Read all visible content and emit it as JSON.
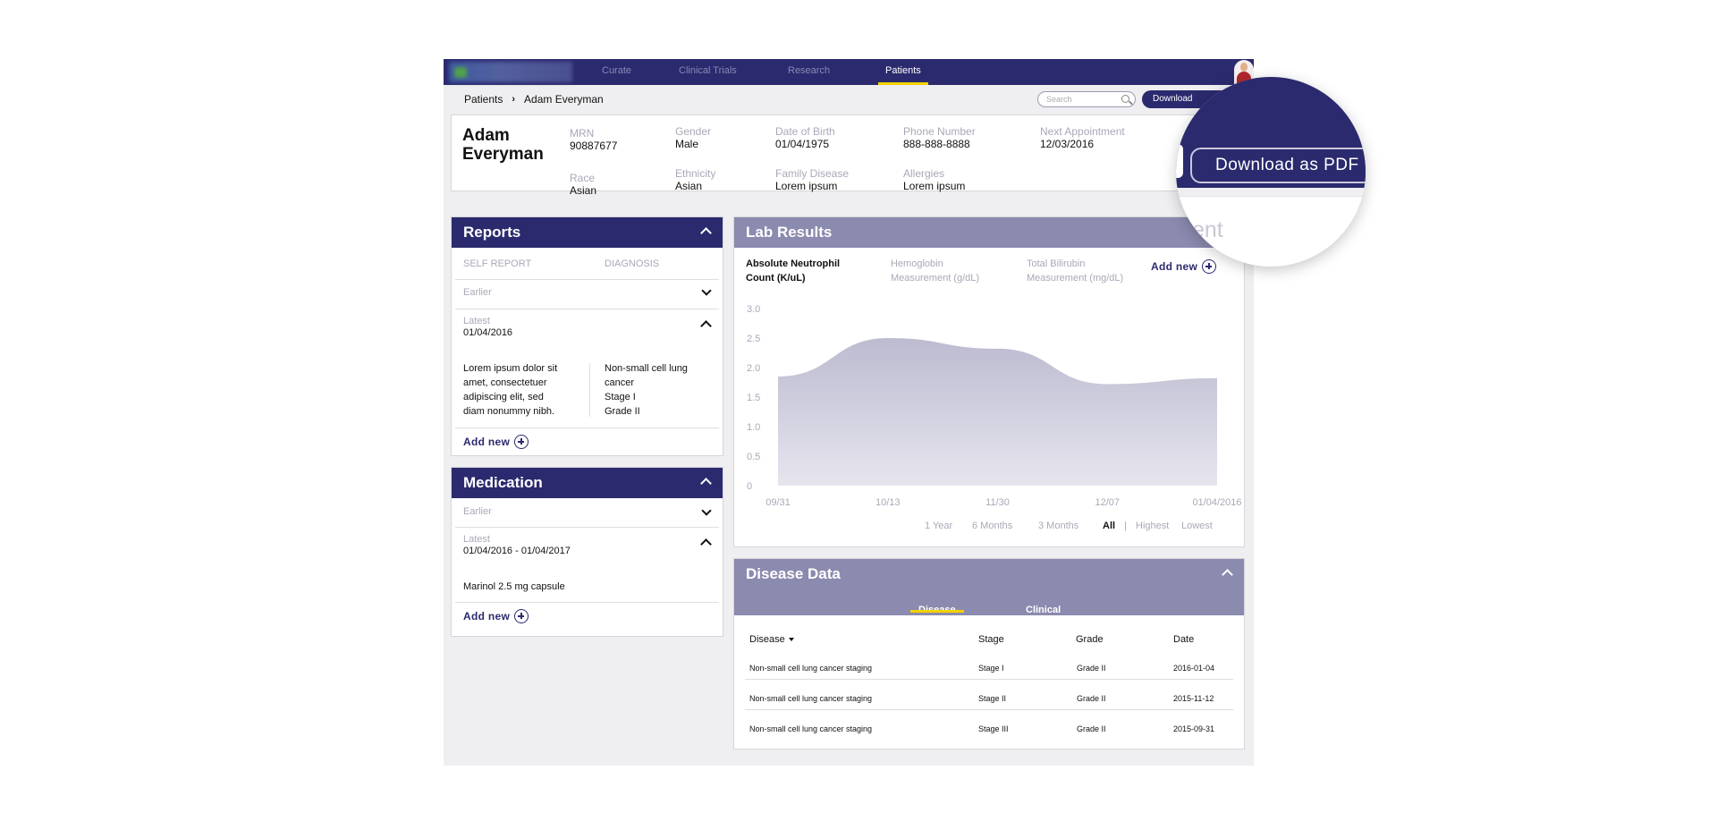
{
  "nav": {
    "tabs": [
      {
        "label": "Curate"
      },
      {
        "label": "Clinical Trials"
      },
      {
        "label": "Research"
      },
      {
        "label": "Patients"
      }
    ]
  },
  "breadcrumb": {
    "root": "Patients",
    "current": "Adam Everyman"
  },
  "search": {
    "placeholder": "Search"
  },
  "download": {
    "label": "Download",
    "zoom_label": "Download as PDF"
  },
  "patient": {
    "name": "Adam Everyman",
    "fields": {
      "mrn": {
        "label": "MRN",
        "value": "90887677"
      },
      "gender": {
        "label": "Gender",
        "value": "Male"
      },
      "dob": {
        "label": "Date of Birth",
        "value": "01/04/1975"
      },
      "phone": {
        "label": "Phone Number",
        "value": "888-888-8888"
      },
      "next_appt": {
        "label": "Next Appointment",
        "value": "12/03/2016"
      },
      "race": {
        "label": "Race",
        "value": "Asian"
      },
      "ethnicity": {
        "label": "Ethnicity",
        "value": "Asian"
      },
      "family_disease": {
        "label": "Family Disease",
        "value": "Lorem ipsum"
      },
      "allergies": {
        "label": "Allergies",
        "value": "Lorem ipsum"
      }
    }
  },
  "reports": {
    "title": "Reports",
    "col_self": "SELF REPORT",
    "col_diag": "DIAGNOSIS",
    "earlier": "Earlier",
    "latest": "Latest",
    "latest_date": "01/04/2016",
    "self_text": [
      "Lorem ipsum dolor sit",
      "amet, consectetuer",
      "adipiscing elit, sed",
      "diam nonummy nibh."
    ],
    "diag_text": [
      "Non-small cell lung",
      "cancer",
      "Stage I",
      "Grade II"
    ],
    "add_new": "Add new"
  },
  "medication": {
    "title": "Medication",
    "earlier": "Earlier",
    "latest": "Latest",
    "latest_range": "01/04/2016 - 01/04/2017",
    "item": "Marinol 2.5 mg capsule",
    "add_new": "Add new"
  },
  "lab": {
    "title": "Lab Results",
    "tabs": [
      {
        "line1": "Absolute Neutrophil",
        "line2": "Count (K/uL)"
      },
      {
        "line1": "Hemoglobin",
        "line2": "Measurement (g/dL)"
      },
      {
        "line1": "Total Bilirubin",
        "line2": "Measurement (mg/dL)"
      }
    ],
    "add_new": "Add new",
    "filters": [
      "1 Year",
      "6 Months",
      "3 Months",
      "All",
      "Highest",
      "Lowest"
    ],
    "filter_sep": "|",
    "active_filter": "All"
  },
  "chart_data": {
    "type": "area",
    "title": "Absolute Neutrophil Count (K/uL)",
    "x": [
      "09/31",
      "10/13",
      "11/30",
      "12/07",
      "01/04/2016"
    ],
    "series": [
      {
        "values": [
          1.85,
          2.5,
          2.32,
          1.72,
          1.82
        ]
      }
    ],
    "ylim": [
      0,
      3.0
    ],
    "yticks": [
      "3.0",
      "2.5",
      "2.0",
      "1.5",
      "1.0",
      "0.5",
      "0"
    ],
    "fill_color": "#bcbbd0",
    "grid": false
  },
  "disease": {
    "title": "Disease Data",
    "tabs": [
      "Disease",
      "Clinical"
    ],
    "headers": [
      "Disease",
      "Stage",
      "Grade",
      "Date"
    ],
    "rows": [
      [
        "Non-small cell lung cancer staging",
        "Stage I",
        "Grade II",
        "2016-01-04"
      ],
      [
        "Non-small cell lung cancer staging",
        "Stage II",
        "Grade II",
        "2015-11-12"
      ],
      [
        "Non-small cell lung cancer staging",
        "Stage III",
        "Grade II",
        "2015-09-31"
      ]
    ]
  },
  "magnifier": {
    "faded_text": "ent"
  },
  "colors": {
    "primary": "#2b2a6e",
    "header_light": "#8b8aaf",
    "accent": "#f5d000",
    "background": "#efeef0"
  }
}
